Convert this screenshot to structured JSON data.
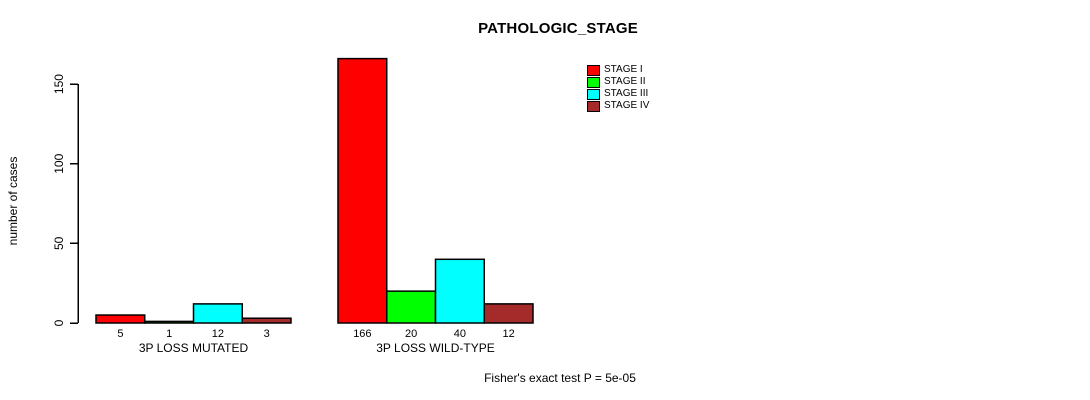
{
  "chart_data": {
    "type": "bar",
    "title": "PATHOLOGIC_STAGE",
    "ylabel": "number of cases",
    "xlabel": "",
    "categories": [
      "3P LOSS MUTATED",
      "3P LOSS WILD-TYPE"
    ],
    "series": [
      {
        "name": "STAGE I",
        "color": "#ff0000",
        "values": [
          5,
          166
        ]
      },
      {
        "name": "STAGE II",
        "color": "#00ff00",
        "values": [
          1,
          20
        ]
      },
      {
        "name": "STAGE III",
        "color": "#00ffff",
        "values": [
          12,
          40
        ]
      },
      {
        "name": "STAGE IV",
        "color": "#a52a2a",
        "values": [
          3,
          12
        ]
      }
    ],
    "yticks": [
      0,
      50,
      100,
      150
    ],
    "ylim": [
      0,
      166
    ],
    "grid": false,
    "legend_position": "top-right",
    "bar_value_labels_shown": true,
    "annotation": "Fisher's exact test P = 5e-05"
  }
}
